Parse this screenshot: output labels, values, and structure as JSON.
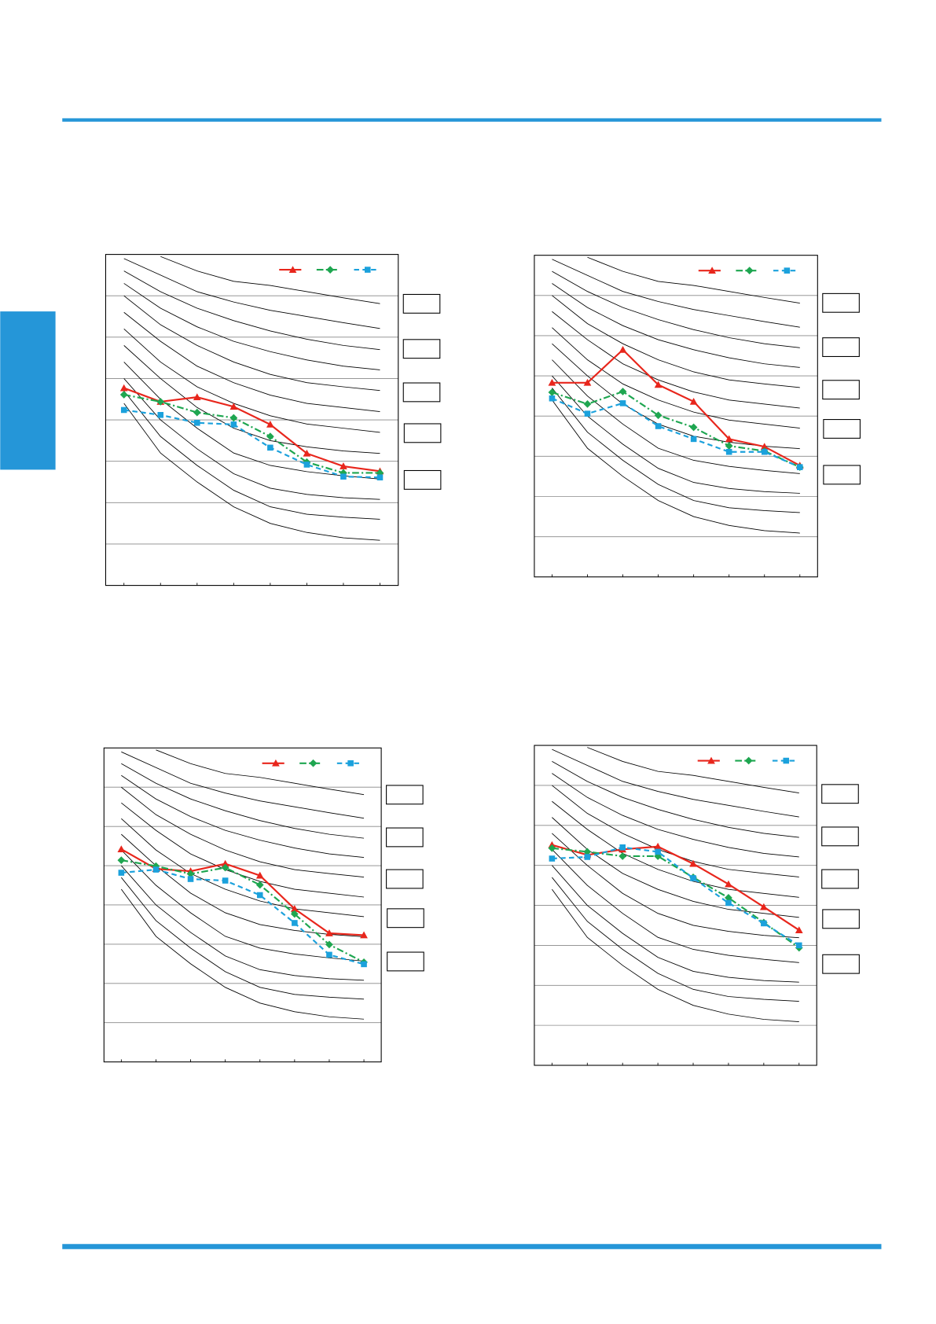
{
  "chart_data": [
    {
      "type": "line",
      "categories": [
        null,
        null,
        null,
        null,
        null,
        null,
        null,
        null
      ],
      "ylim": [
        0,
        8
      ],
      "yticks": [
        1,
        2,
        3,
        4,
        5,
        6,
        7
      ],
      "grid": true,
      "series": [
        {
          "color": "#000000",
          "values": [
            null,
            7.95,
            7.6,
            7.35,
            7.25,
            7.1,
            6.95,
            6.81
          ]
        },
        {
          "color": "#000000",
          "values": [
            7.9,
            7.5,
            7.1,
            6.85,
            6.65,
            6.5,
            6.35,
            6.21
          ]
        },
        {
          "color": "#000000",
          "values": [
            7.6,
            7.1,
            6.7,
            6.4,
            6.15,
            5.95,
            5.8,
            5.7
          ]
        },
        {
          "color": "#000000",
          "values": [
            7.3,
            6.7,
            6.25,
            5.9,
            5.65,
            5.45,
            5.3,
            5.21
          ]
        },
        {
          "color": "#000000",
          "values": [
            7.0,
            6.3,
            5.8,
            5.4,
            5.1,
            4.9,
            4.8,
            4.71
          ]
        },
        {
          "color": "#000000",
          "values": [
            6.6,
            5.9,
            5.3,
            4.9,
            4.6,
            4.4,
            4.3,
            4.2
          ]
        },
        {
          "color": "#000000",
          "values": [
            6.2,
            5.4,
            4.8,
            4.4,
            4.1,
            3.9,
            3.8,
            3.7
          ]
        },
        {
          "color": "#000000",
          "values": [
            5.8,
            5.0,
            4.3,
            3.8,
            3.5,
            3.35,
            3.25,
            3.19
          ]
        },
        {
          "color": "#000000",
          "values": [
            5.4,
            4.5,
            3.8,
            3.2,
            2.9,
            2.75,
            2.65,
            2.57
          ]
        },
        {
          "color": "#000000",
          "values": [
            5.0,
            4.0,
            3.3,
            2.7,
            2.35,
            2.2,
            2.12,
            2.08
          ]
        },
        {
          "color": "#000000",
          "values": [
            4.7,
            3.6,
            2.9,
            2.3,
            1.9,
            1.72,
            1.65,
            1.6
          ]
        },
        {
          "color": "#000000",
          "values": [
            4.4,
            3.2,
            2.5,
            1.9,
            1.5,
            1.28,
            1.15,
            1.09
          ]
        },
        {
          "color": "#e8261c",
          "marker": "triangle",
          "values": [
            4.77,
            4.44,
            4.55,
            4.32,
            3.89,
            3.19,
            2.88,
            2.76
          ]
        },
        {
          "color": "#1ea650",
          "marker": "diamond",
          "dash": "dashdot",
          "values": [
            4.61,
            4.44,
            4.18,
            4.05,
            3.6,
            2.98,
            2.72,
            2.72
          ]
        },
        {
          "color": "#1ba1dc",
          "marker": "square",
          "dash": "dash",
          "values": [
            4.24,
            4.12,
            3.93,
            3.89,
            3.33,
            2.92,
            2.63,
            2.61
          ]
        }
      ]
    },
    {
      "type": "line",
      "categories": [
        null,
        null,
        null,
        null,
        null,
        null,
        null,
        null
      ],
      "ylim": [
        0,
        8
      ],
      "yticks": [
        1,
        2,
        3,
        4,
        5,
        6,
        7
      ],
      "grid": true,
      "series": [
        {
          "color": "#000000",
          "values": [
            null,
            7.95,
            7.6,
            7.35,
            7.25,
            7.1,
            6.95,
            6.81
          ]
        },
        {
          "color": "#000000",
          "values": [
            7.9,
            7.5,
            7.1,
            6.85,
            6.65,
            6.5,
            6.35,
            6.21
          ]
        },
        {
          "color": "#000000",
          "values": [
            7.6,
            7.1,
            6.7,
            6.4,
            6.15,
            5.95,
            5.8,
            5.7
          ]
        },
        {
          "color": "#000000",
          "values": [
            7.3,
            6.7,
            6.25,
            5.9,
            5.65,
            5.45,
            5.3,
            5.21
          ]
        },
        {
          "color": "#000000",
          "values": [
            7.0,
            6.3,
            5.8,
            5.4,
            5.1,
            4.9,
            4.8,
            4.71
          ]
        },
        {
          "color": "#000000",
          "values": [
            6.6,
            5.9,
            5.3,
            4.9,
            4.6,
            4.4,
            4.3,
            4.2
          ]
        },
        {
          "color": "#000000",
          "values": [
            6.2,
            5.4,
            4.8,
            4.4,
            4.1,
            3.9,
            3.8,
            3.7
          ]
        },
        {
          "color": "#000000",
          "values": [
            5.8,
            5.0,
            4.3,
            3.8,
            3.5,
            3.35,
            3.25,
            3.19
          ]
        },
        {
          "color": "#000000",
          "values": [
            5.4,
            4.5,
            3.8,
            3.2,
            2.9,
            2.75,
            2.65,
            2.57
          ]
        },
        {
          "color": "#000000",
          "values": [
            5.0,
            4.0,
            3.3,
            2.7,
            2.35,
            2.2,
            2.12,
            2.08
          ]
        },
        {
          "color": "#000000",
          "values": [
            4.7,
            3.6,
            2.9,
            2.3,
            1.9,
            1.72,
            1.65,
            1.6
          ]
        },
        {
          "color": "#000000",
          "values": [
            4.4,
            3.2,
            2.5,
            1.9,
            1.5,
            1.28,
            1.15,
            1.09
          ]
        },
        {
          "color": "#e8261c",
          "marker": "triangle",
          "values": [
            4.83,
            4.83,
            5.65,
            4.78,
            4.36,
            3.43,
            3.24,
            2.77
          ]
        },
        {
          "color": "#1ea650",
          "marker": "diamond",
          "dash": "dashdot",
          "values": [
            4.59,
            4.3,
            4.61,
            4.02,
            3.72,
            3.26,
            3.13,
            2.73
          ]
        },
        {
          "color": "#1ba1dc",
          "marker": "square",
          "dash": "dash",
          "values": [
            4.44,
            4.06,
            4.32,
            3.75,
            3.43,
            3.11,
            3.11,
            2.73
          ]
        }
      ]
    },
    {
      "type": "line",
      "categories": [
        null,
        null,
        null,
        null,
        null,
        null,
        null,
        null
      ],
      "ylim": [
        0,
        8
      ],
      "yticks": [
        1,
        2,
        3,
        4,
        5,
        6,
        7
      ],
      "grid": true,
      "series": [
        {
          "color": "#000000",
          "values": [
            null,
            7.95,
            7.6,
            7.35,
            7.25,
            7.1,
            6.95,
            6.81
          ]
        },
        {
          "color": "#000000",
          "values": [
            7.9,
            7.5,
            7.1,
            6.85,
            6.65,
            6.5,
            6.35,
            6.21
          ]
        },
        {
          "color": "#000000",
          "values": [
            7.6,
            7.1,
            6.7,
            6.4,
            6.15,
            5.95,
            5.8,
            5.7
          ]
        },
        {
          "color": "#000000",
          "values": [
            7.3,
            6.7,
            6.25,
            5.9,
            5.65,
            5.45,
            5.3,
            5.21
          ]
        },
        {
          "color": "#000000",
          "values": [
            7.0,
            6.3,
            5.8,
            5.4,
            5.1,
            4.9,
            4.8,
            4.71
          ]
        },
        {
          "color": "#000000",
          "values": [
            6.6,
            5.9,
            5.3,
            4.9,
            4.6,
            4.4,
            4.3,
            4.2
          ]
        },
        {
          "color": "#000000",
          "values": [
            6.2,
            5.4,
            4.8,
            4.4,
            4.1,
            3.9,
            3.8,
            3.7
          ]
        },
        {
          "color": "#000000",
          "values": [
            5.8,
            5.0,
            4.3,
            3.8,
            3.5,
            3.35,
            3.25,
            3.19
          ]
        },
        {
          "color": "#000000",
          "values": [
            5.4,
            4.5,
            3.8,
            3.2,
            2.9,
            2.75,
            2.65,
            2.57
          ]
        },
        {
          "color": "#000000",
          "values": [
            5.0,
            4.0,
            3.3,
            2.7,
            2.35,
            2.2,
            2.12,
            2.08
          ]
        },
        {
          "color": "#000000",
          "values": [
            4.7,
            3.6,
            2.9,
            2.3,
            1.9,
            1.72,
            1.65,
            1.6
          ]
        },
        {
          "color": "#000000",
          "values": [
            4.4,
            3.2,
            2.5,
            1.9,
            1.5,
            1.28,
            1.15,
            1.09
          ]
        },
        {
          "color": "#e8261c",
          "marker": "triangle",
          "values": [
            5.42,
            4.92,
            4.86,
            5.05,
            4.75,
            3.9,
            3.28,
            3.23
          ]
        },
        {
          "color": "#1ea650",
          "marker": "diamond",
          "dash": "dashdot",
          "values": [
            5.14,
            4.99,
            4.79,
            4.95,
            4.51,
            3.77,
            2.99,
            2.54
          ]
        },
        {
          "color": "#1ba1dc",
          "marker": "square",
          "dash": "dash",
          "values": [
            4.82,
            4.9,
            4.66,
            4.62,
            4.25,
            3.54,
            2.73,
            2.49
          ]
        }
      ]
    },
    {
      "type": "line",
      "categories": [
        null,
        null,
        null,
        null,
        null,
        null,
        null,
        null
      ],
      "ylim": [
        0,
        8
      ],
      "yticks": [
        1,
        2,
        3,
        4,
        5,
        6,
        7
      ],
      "grid": true,
      "series": [
        {
          "color": "#000000",
          "values": [
            null,
            7.95,
            7.6,
            7.35,
            7.25,
            7.1,
            6.95,
            6.81
          ]
        },
        {
          "color": "#000000",
          "values": [
            7.9,
            7.5,
            7.1,
            6.85,
            6.65,
            6.5,
            6.35,
            6.21
          ]
        },
        {
          "color": "#000000",
          "values": [
            7.6,
            7.1,
            6.7,
            6.4,
            6.15,
            5.95,
            5.8,
            5.7
          ]
        },
        {
          "color": "#000000",
          "values": [
            7.3,
            6.7,
            6.25,
            5.9,
            5.65,
            5.45,
            5.3,
            5.21
          ]
        },
        {
          "color": "#000000",
          "values": [
            7.0,
            6.3,
            5.8,
            5.4,
            5.1,
            4.9,
            4.8,
            4.71
          ]
        },
        {
          "color": "#000000",
          "values": [
            6.6,
            5.9,
            5.3,
            4.9,
            4.6,
            4.4,
            4.3,
            4.2
          ]
        },
        {
          "color": "#000000",
          "values": [
            6.2,
            5.4,
            4.8,
            4.4,
            4.1,
            3.9,
            3.8,
            3.7
          ]
        },
        {
          "color": "#000000",
          "values": [
            5.8,
            5.0,
            4.3,
            3.8,
            3.5,
            3.35,
            3.25,
            3.19
          ]
        },
        {
          "color": "#000000",
          "values": [
            5.4,
            4.5,
            3.8,
            3.2,
            2.9,
            2.75,
            2.65,
            2.57
          ]
        },
        {
          "color": "#000000",
          "values": [
            5.0,
            4.0,
            3.3,
            2.7,
            2.35,
            2.2,
            2.12,
            2.08
          ]
        },
        {
          "color": "#000000",
          "values": [
            4.7,
            3.6,
            2.9,
            2.3,
            1.9,
            1.72,
            1.65,
            1.6
          ]
        },
        {
          "color": "#000000",
          "values": [
            4.4,
            3.2,
            2.5,
            1.9,
            1.5,
            1.28,
            1.15,
            1.09
          ]
        },
        {
          "color": "#e8261c",
          "marker": "triangle",
          "values": [
            5.51,
            5.26,
            5.4,
            5.47,
            5.04,
            4.53,
            3.96,
            3.38
          ]
        },
        {
          "color": "#1ea650",
          "marker": "diamond",
          "dash": "dashdot",
          "values": [
            5.43,
            5.34,
            5.23,
            5.23,
            4.7,
            4.19,
            3.57,
            2.94
          ]
        },
        {
          "color": "#1ba1dc",
          "marker": "square",
          "dash": "dash",
          "values": [
            5.17,
            5.21,
            5.45,
            5.34,
            4.68,
            4.06,
            3.55,
            3.0
          ]
        }
      ]
    }
  ]
}
